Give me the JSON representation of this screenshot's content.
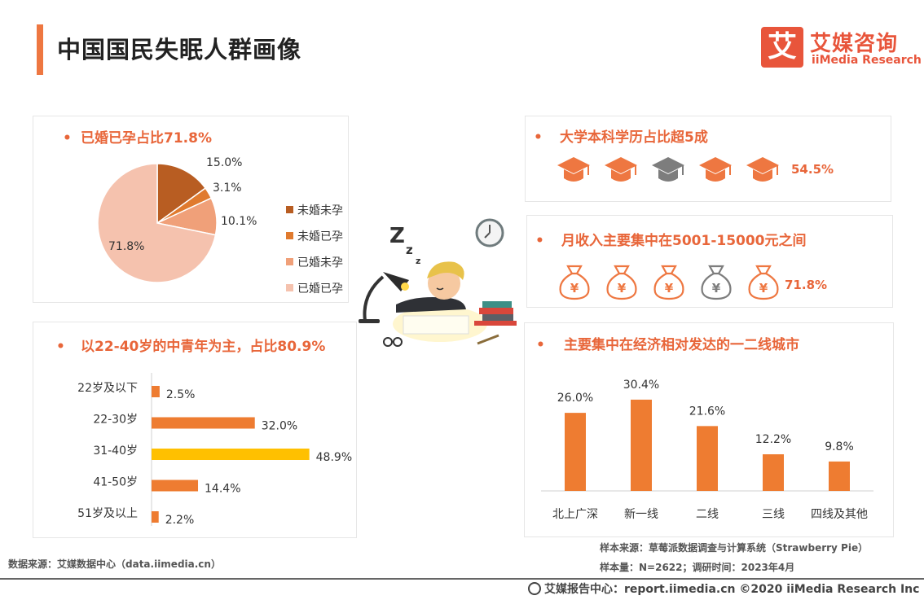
{
  "header": {
    "title": "中国国民失眠人群画像",
    "logo_mark": "艾",
    "logo_cn": "艾媒咨询",
    "logo_en": "iiMedia Research"
  },
  "colors": {
    "accent": "#ee7741",
    "title_orange": "#e8663a",
    "gray_icon": "#7d7d7d",
    "highlight_bar": "#ffc000"
  },
  "marriage": {
    "title": "已婚已孕占比71.8%",
    "chart_data": {
      "type": "pie",
      "labels": [
        "未婚未孕",
        "未婚已孕",
        "已婚未孕",
        "已婚已孕"
      ],
      "values": [
        15.0,
        3.1,
        10.1,
        71.8
      ],
      "value_labels": [
        "15.0%",
        "3.1%",
        "10.1%",
        "71.8%"
      ],
      "colors": [
        "#b85d22",
        "#e07a2e",
        "#f0a079",
        "#f5c2ae"
      ],
      "legend_position": "right"
    }
  },
  "age": {
    "title": "以22-40岁的中青年为主，占比80.9%",
    "chart_data": {
      "type": "bar",
      "orientation": "horizontal",
      "categories": [
        "22岁及以下",
        "22-30岁",
        "31-40岁",
        "41-50岁",
        "51岁及以上"
      ],
      "values": [
        2.5,
        32.0,
        48.9,
        14.4,
        2.2
      ],
      "value_labels": [
        "2.5%",
        "32.0%",
        "48.9%",
        "14.4%",
        "2.2%"
      ],
      "colors": [
        "#ee7c31",
        "#ee7c31",
        "#ffc000",
        "#ee7c31",
        "#ee7c31"
      ],
      "xlim": [
        0,
        50
      ]
    }
  },
  "education": {
    "title": "大学本科学历占比超5成",
    "icon": "graduation-cap-icon",
    "icon_states": [
      "orange",
      "orange",
      "gray",
      "orange",
      "orange"
    ],
    "value": "54.5%"
  },
  "income": {
    "title": "月收入主要集中在5001-15000元之间",
    "icon": "money-bag-icon",
    "icon_symbol": "¥",
    "icon_states": [
      "orange",
      "orange",
      "orange",
      "gray",
      "orange"
    ],
    "value": "71.8%"
  },
  "city": {
    "title": "主要集中在经济相对发达的一二线城市",
    "chart_data": {
      "type": "bar",
      "categories": [
        "北上广深",
        "新一线",
        "二线",
        "三线",
        "四线及其他"
      ],
      "values": [
        26.0,
        30.4,
        21.6,
        12.2,
        9.8
      ],
      "value_labels": [
        "26.0%",
        "30.4%",
        "21.6%",
        "12.2%",
        "9.8%"
      ],
      "color": "#ee7c31",
      "ylim": [
        0,
        32
      ]
    }
  },
  "notes": {
    "source_left": "数据来源：艾媒数据中心（data.iimedia.cn）",
    "sample_source": "样本来源：草莓派数据调查与计算系统（Strawberry Pie）",
    "sample_size": "样本量：N=2622；调研时间：2023年4月"
  },
  "illustration": {
    "z_letters": [
      "Z",
      "z",
      "z"
    ]
  },
  "footer": {
    "text": "艾媒报告中心：report.iimedia.cn   ©2020  iiMedia Research  Inc"
  }
}
